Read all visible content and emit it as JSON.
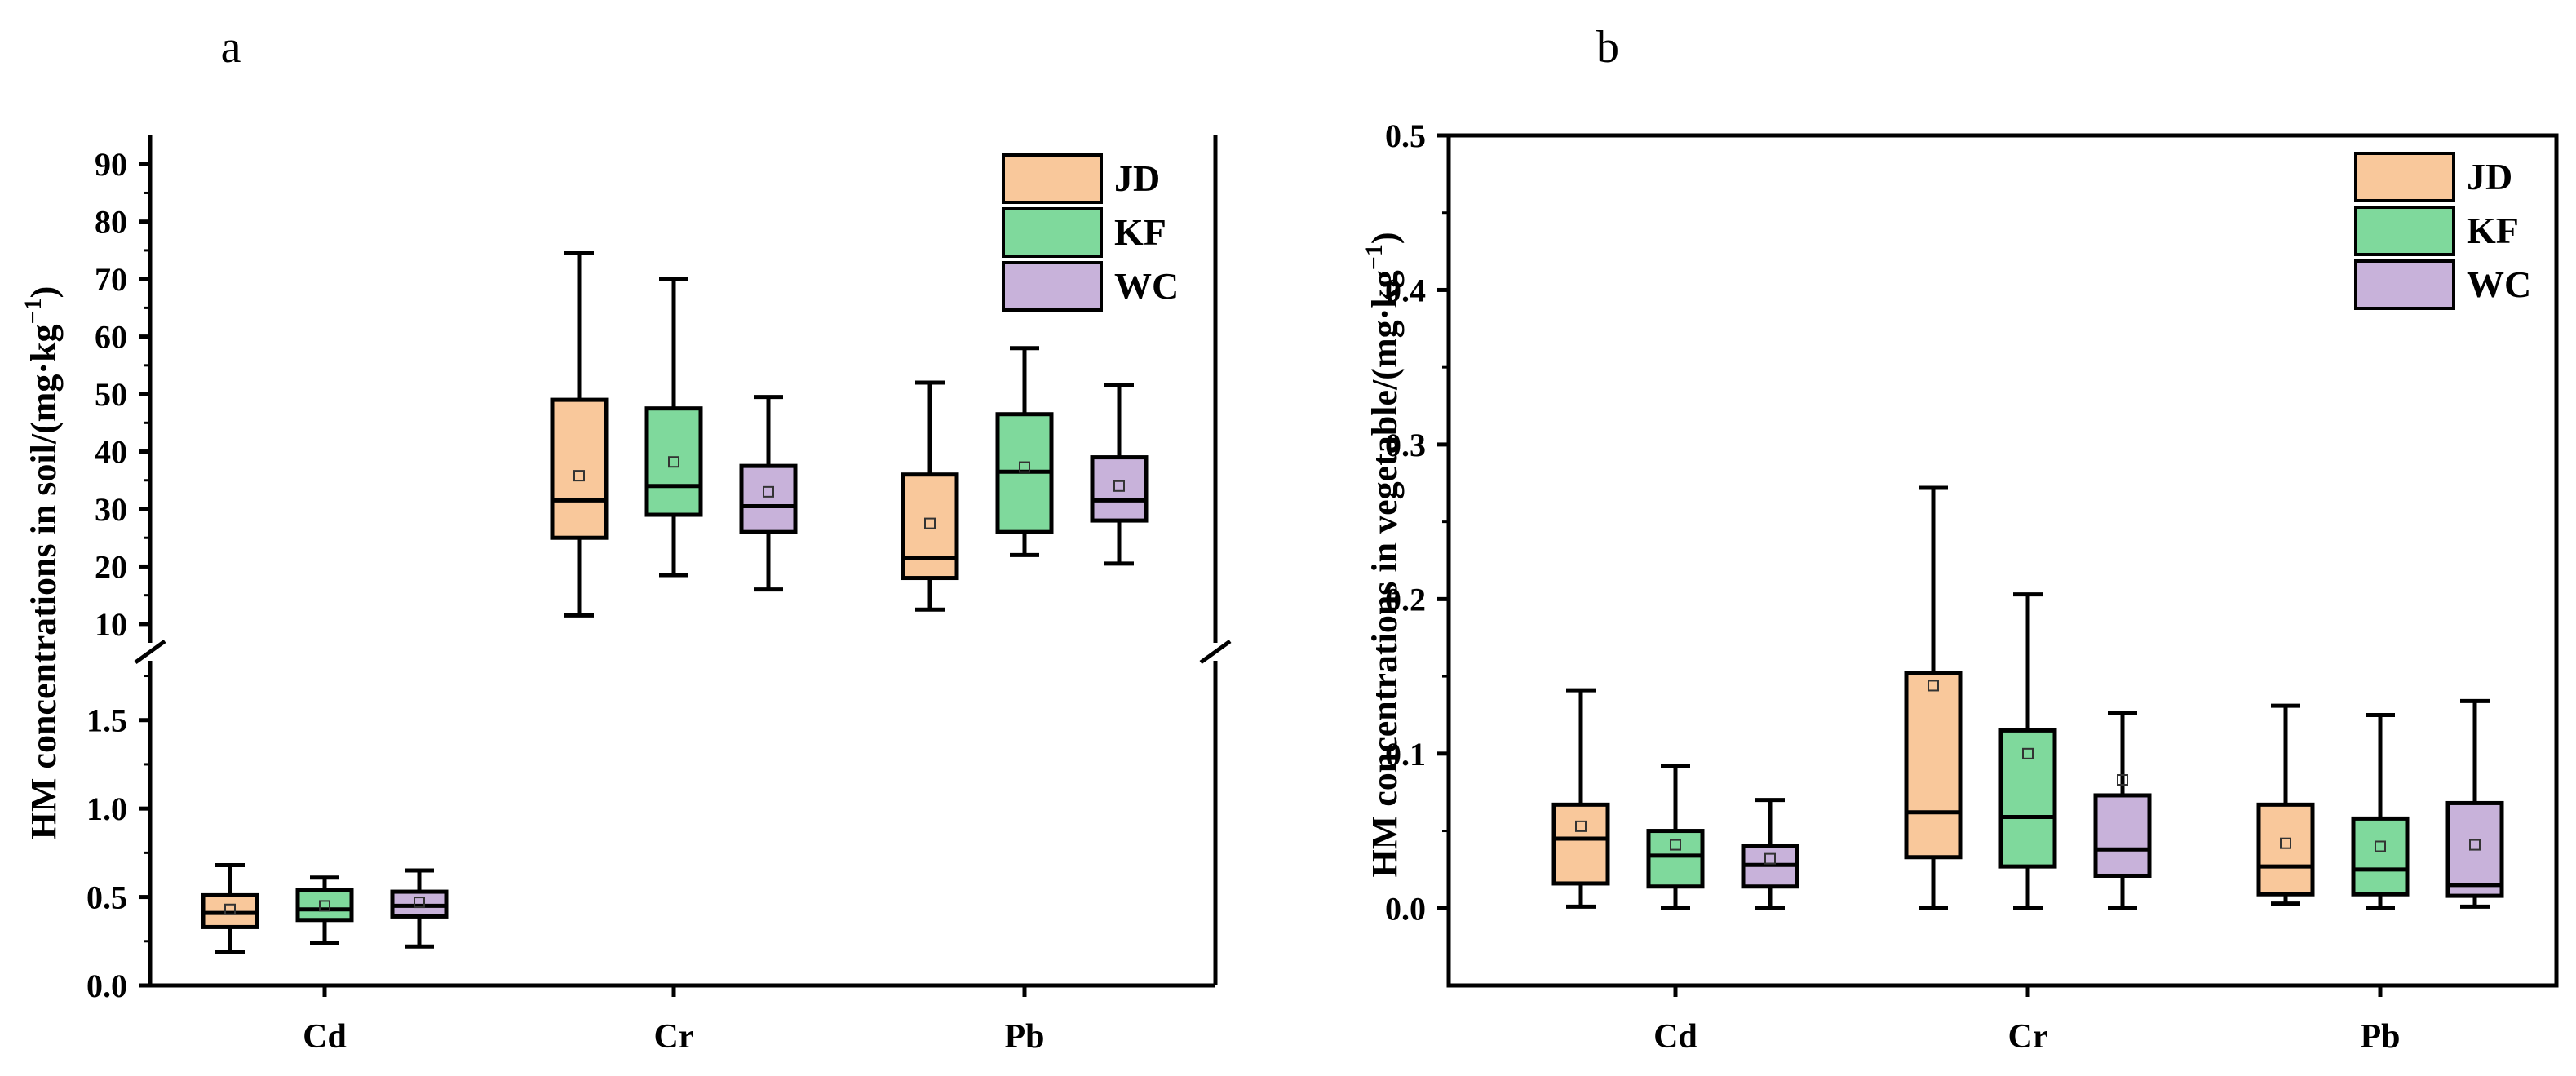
{
  "chart_data": [
    {
      "type": "boxplot",
      "panel_label": "a",
      "ylabel": "HM concentrations in soil/(mg·kg",
      "ylabel_superscript": "−1",
      "ylabel_close": ")",
      "categories": [
        "Cd",
        "Cr",
        "Pb"
      ],
      "axis_break": true,
      "ylim_lower": [
        0,
        1.9
      ],
      "ylim_upper": [
        8,
        95
      ],
      "yticks_lower": [
        "0.0",
        "0.5",
        "1.0",
        "1.5"
      ],
      "yticks_upper": [
        "10",
        "20",
        "30",
        "40",
        "50",
        "60",
        "70",
        "80",
        "90"
      ],
      "legend": [
        "JD",
        "KF",
        "WC"
      ],
      "series": [
        {
          "name": "JD",
          "color": "#f9c89b",
          "boxes": [
            {
              "category": "Cd",
              "min": 0.19,
              "q1": 0.33,
              "median": 0.41,
              "q3": 0.51,
              "max": 0.68,
              "mean": 0.43
            },
            {
              "category": "Cr",
              "min": 11.5,
              "q1": 25.0,
              "median": 31.5,
              "q3": 49.0,
              "max": 74.5,
              "mean": 35.8
            },
            {
              "category": "Pb",
              "min": 12.5,
              "q1": 18.0,
              "median": 21.5,
              "q3": 36.0,
              "max": 52.0,
              "mean": 27.5
            }
          ]
        },
        {
          "name": "KF",
          "color": "#7fd99c",
          "boxes": [
            {
              "category": "Cd",
              "min": 0.24,
              "q1": 0.37,
              "median": 0.43,
              "q3": 0.54,
              "max": 0.61,
              "mean": 0.45
            },
            {
              "category": "Cr",
              "min": 18.5,
              "q1": 29.0,
              "median": 34.0,
              "q3": 47.5,
              "max": 70.0,
              "mean": 38.2
            },
            {
              "category": "Pb",
              "min": 22.0,
              "q1": 26.0,
              "median": 36.5,
              "q3": 46.5,
              "max": 58.0,
              "mean": 37.3
            }
          ]
        },
        {
          "name": "WC",
          "color": "#c8b2da",
          "boxes": [
            {
              "category": "Cd",
              "min": 0.22,
              "q1": 0.39,
              "median": 0.45,
              "q3": 0.53,
              "max": 0.65,
              "mean": 0.47
            },
            {
              "category": "Cr",
              "min": 16.0,
              "q1": 26.0,
              "median": 30.5,
              "q3": 37.5,
              "max": 49.5,
              "mean": 33.0
            },
            {
              "category": "Pb",
              "min": 20.5,
              "q1": 28.0,
              "median": 31.5,
              "q3": 39.0,
              "max": 51.5,
              "mean": 34.0
            }
          ]
        }
      ]
    },
    {
      "type": "boxplot",
      "panel_label": "b",
      "ylabel": "HM concentrations in vegetable/(mg·kg",
      "ylabel_superscript": "−1",
      "ylabel_close": ")",
      "categories": [
        "Cd",
        "Cr",
        "Pb"
      ],
      "ylim": [
        -0.05,
        0.5
      ],
      "yticks": [
        "0.0",
        "0.1",
        "0.2",
        "0.3",
        "0.4",
        "0.5"
      ],
      "legend": [
        "JD",
        "KF",
        "WC"
      ],
      "series": [
        {
          "name": "JD",
          "color": "#f9c89b",
          "boxes": [
            {
              "category": "Cd",
              "min": 0.001,
              "q1": 0.016,
              "median": 0.045,
              "q3": 0.067,
              "max": 0.141,
              "mean": 0.053
            },
            {
              "category": "Cr",
              "min": 0.0,
              "q1": 0.033,
              "median": 0.062,
              "q3": 0.152,
              "max": 0.272,
              "mean": 0.144
            },
            {
              "category": "Pb",
              "min": 0.003,
              "q1": 0.009,
              "median": 0.027,
              "q3": 0.067,
              "max": 0.131,
              "mean": 0.042
            }
          ]
        },
        {
          "name": "KF",
          "color": "#7fd99c",
          "boxes": [
            {
              "category": "Cd",
              "min": 0.0,
              "q1": 0.014,
              "median": 0.034,
              "q3": 0.05,
              "max": 0.092,
              "mean": 0.041
            },
            {
              "category": "Cr",
              "min": 0.0,
              "q1": 0.027,
              "median": 0.059,
              "q3": 0.115,
              "max": 0.203,
              "mean": 0.1
            },
            {
              "category": "Pb",
              "min": 0.0,
              "q1": 0.009,
              "median": 0.025,
              "q3": 0.058,
              "max": 0.125,
              "mean": 0.04
            }
          ]
        },
        {
          "name": "WC",
          "color": "#c8b2da",
          "boxes": [
            {
              "category": "Cd",
              "min": 0.0,
              "q1": 0.014,
              "median": 0.028,
              "q3": 0.04,
              "max": 0.07,
              "mean": 0.032
            },
            {
              "category": "Cr",
              "min": 0.0,
              "q1": 0.021,
              "median": 0.038,
              "q3": 0.073,
              "max": 0.126,
              "mean": 0.083
            },
            {
              "category": "Pb",
              "min": 0.001,
              "q1": 0.008,
              "median": 0.015,
              "q3": 0.068,
              "max": 0.134,
              "mean": 0.041
            }
          ]
        }
      ]
    }
  ]
}
